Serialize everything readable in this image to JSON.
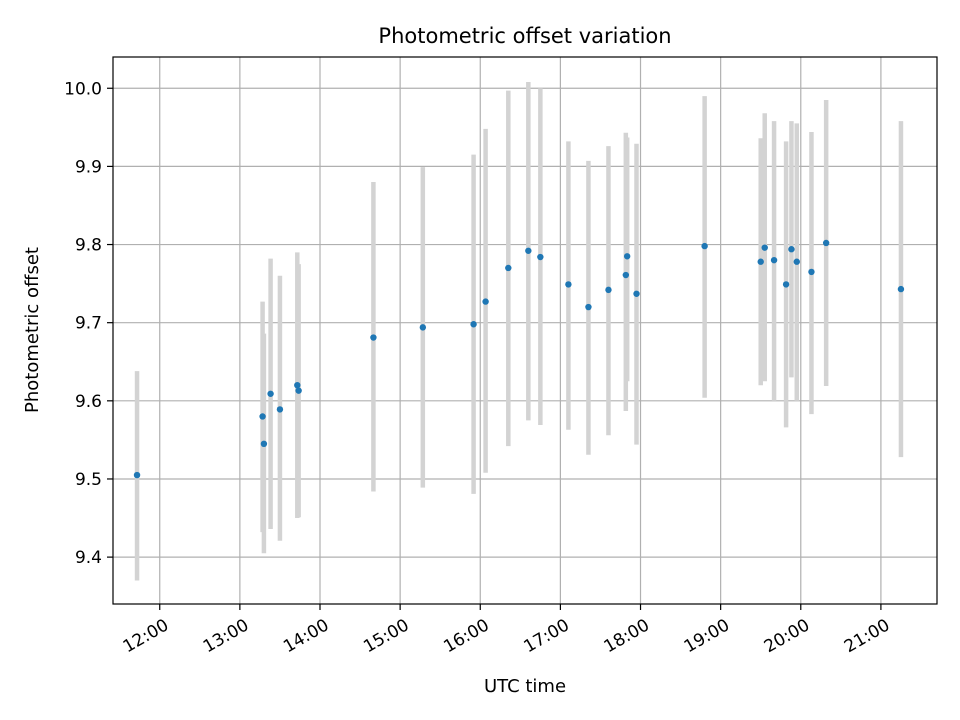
{
  "chart_data": {
    "type": "scatter",
    "title": "Photometric offset variation",
    "xlabel": "UTC time",
    "ylabel": "Photometric offset",
    "xlim": [
      "11:25",
      "21:42"
    ],
    "ylim": [
      9.34,
      10.04
    ],
    "xticks": [
      "12:00",
      "13:00",
      "14:00",
      "15:00",
      "16:00",
      "17:00",
      "18:00",
      "19:00",
      "20:00",
      "21:00"
    ],
    "yticks": [
      9.4,
      9.5,
      9.6,
      9.7,
      9.8,
      9.9,
      10.0
    ],
    "ytick_labels": [
      "9.4",
      "9.5",
      "9.6",
      "9.7",
      "9.8",
      "9.9",
      "10.0"
    ],
    "grid": true,
    "marker_color": "#1f77b4",
    "errorbar_color": "#d3d3d3",
    "points": [
      {
        "x": "11:43",
        "y": 9.505,
        "ylow": 9.37,
        "yhigh": 9.638
      },
      {
        "x": "13:17",
        "y": 9.58,
        "ylow": 9.432,
        "yhigh": 9.727
      },
      {
        "x": "13:18",
        "y": 9.545,
        "ylow": 9.405,
        "yhigh": 9.686
      },
      {
        "x": "13:23",
        "y": 9.609,
        "ylow": 9.436,
        "yhigh": 9.782
      },
      {
        "x": "13:30",
        "y": 9.589,
        "ylow": 9.421,
        "yhigh": 9.76
      },
      {
        "x": "13:43",
        "y": 9.62,
        "ylow": 9.45,
        "yhigh": 9.79
      },
      {
        "x": "13:44",
        "y": 9.613,
        "ylow": 9.451,
        "yhigh": 9.775
      },
      {
        "x": "14:40",
        "y": 9.681,
        "ylow": 9.484,
        "yhigh": 9.88
      },
      {
        "x": "15:17",
        "y": 9.694,
        "ylow": 9.489,
        "yhigh": 9.899
      },
      {
        "x": "15:55",
        "y": 9.698,
        "ylow": 9.481,
        "yhigh": 9.915
      },
      {
        "x": "16:04",
        "y": 9.727,
        "ylow": 9.508,
        "yhigh": 9.948
      },
      {
        "x": "16:21",
        "y": 9.77,
        "ylow": 9.542,
        "yhigh": 9.997
      },
      {
        "x": "16:36",
        "y": 9.792,
        "ylow": 9.575,
        "yhigh": 10.008
      },
      {
        "x": "16:45",
        "y": 9.784,
        "ylow": 9.569,
        "yhigh": 10.0
      },
      {
        "x": "17:06",
        "y": 9.749,
        "ylow": 9.563,
        "yhigh": 9.932
      },
      {
        "x": "17:21",
        "y": 9.72,
        "ylow": 9.531,
        "yhigh": 9.907
      },
      {
        "x": "17:36",
        "y": 9.742,
        "ylow": 9.556,
        "yhigh": 9.926
      },
      {
        "x": "17:49",
        "y": 9.761,
        "ylow": 9.587,
        "yhigh": 9.943
      },
      {
        "x": "17:50",
        "y": 9.785,
        "ylow": 9.625,
        "yhigh": 9.937
      },
      {
        "x": "17:57",
        "y": 9.737,
        "ylow": 9.544,
        "yhigh": 9.929
      },
      {
        "x": "18:48",
        "y": 9.798,
        "ylow": 9.604,
        "yhigh": 9.99
      },
      {
        "x": "19:30",
        "y": 9.778,
        "ylow": 9.62,
        "yhigh": 9.936
      },
      {
        "x": "19:33",
        "y": 9.796,
        "ylow": 9.625,
        "yhigh": 9.968
      },
      {
        "x": "19:40",
        "y": 9.78,
        "ylow": 9.6,
        "yhigh": 9.958
      },
      {
        "x": "19:49",
        "y": 9.749,
        "ylow": 9.566,
        "yhigh": 9.932
      },
      {
        "x": "19:53",
        "y": 9.794,
        "ylow": 9.63,
        "yhigh": 9.958
      },
      {
        "x": "19:57",
        "y": 9.778,
        "ylow": 9.6,
        "yhigh": 9.955
      },
      {
        "x": "20:08",
        "y": 9.765,
        "ylow": 9.583,
        "yhigh": 9.944
      },
      {
        "x": "20:19",
        "y": 9.802,
        "ylow": 9.619,
        "yhigh": 9.985
      },
      {
        "x": "21:15",
        "y": 9.743,
        "ylow": 9.528,
        "yhigh": 9.958
      }
    ]
  }
}
